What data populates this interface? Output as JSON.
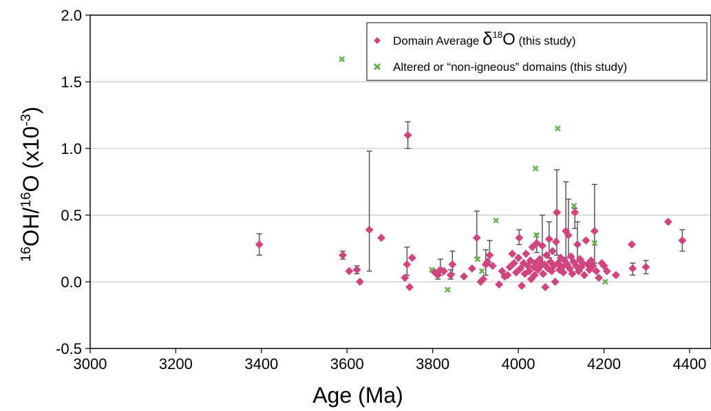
{
  "chart_data": {
    "type": "scatter",
    "title": "",
    "xlabel": "Age (Ma)",
    "ylabel": {
      "pre_sup": "16",
      "mid": "OH/",
      "mid_sup": "16",
      "post": "O (x10",
      "exp": "-3",
      "close": ")"
    },
    "xlim": [
      3000,
      4450
    ],
    "ylim": [
      -0.5,
      2.0
    ],
    "xticks": [
      "3000",
      "3200",
      "3400",
      "3600",
      "3800",
      "4000",
      "4200",
      "4400"
    ],
    "yticks": [
      "-0.5",
      "0.0",
      "0.5",
      "1.0",
      "1.5",
      "2.0"
    ],
    "grid": "horizontal",
    "legend_position": "top-right",
    "legend": {
      "series1_pre": "Domain Average ",
      "series1_delta": "δ",
      "series1_sup": "18",
      "series1_o": "O",
      "series1_post": " (this study)",
      "series2": "Altered or “non-igneous” domains (this study)"
    },
    "colors": {
      "series1": "#d2447f",
      "series2": "#6ab04c",
      "errorbar": "#555555",
      "grid": "#c8c8c8"
    },
    "series": [
      {
        "name": "Domain Average δ18O (this study)",
        "marker": "diamond",
        "points": [
          {
            "x": 3395,
            "y": 0.28,
            "lo": 0.2,
            "hi": 0.36
          },
          {
            "x": 3590,
            "y": 0.2,
            "lo": 0.17,
            "hi": 0.23
          },
          {
            "x": 3605,
            "y": 0.08
          },
          {
            "x": 3623,
            "y": 0.09,
            "lo": 0.06,
            "hi": 0.12
          },
          {
            "x": 3630,
            "y": 0.0
          },
          {
            "x": 3652,
            "y": 0.39,
            "lo": 0.08,
            "hi": 0.98
          },
          {
            "x": 3680,
            "y": 0.33
          },
          {
            "x": 3735,
            "y": 0.03
          },
          {
            "x": 3740,
            "y": 0.13,
            "lo": 0.05,
            "hi": 0.26
          },
          {
            "x": 3742,
            "y": 1.1,
            "lo": 1.0,
            "hi": 1.2
          },
          {
            "x": 3746,
            "y": -0.04
          },
          {
            "x": 3752,
            "y": 0.18
          },
          {
            "x": 3805,
            "y": 0.07
          },
          {
            "x": 3812,
            "y": 0.05,
            "lo": 0.02,
            "hi": 0.09
          },
          {
            "x": 3818,
            "y": 0.09,
            "lo": 0.05,
            "hi": 0.17
          },
          {
            "x": 3826,
            "y": 0.08
          },
          {
            "x": 3842,
            "y": 0.05,
            "lo": 0.02,
            "hi": 0.09
          },
          {
            "x": 3846,
            "y": 0.13,
            "lo": 0.06,
            "hi": 0.23
          },
          {
            "x": 3873,
            "y": 0.04
          },
          {
            "x": 3892,
            "y": 0.1
          },
          {
            "x": 3903,
            "y": 0.33,
            "lo": 0.18,
            "hi": 0.53
          },
          {
            "x": 3912,
            "y": 0.0
          },
          {
            "x": 3918,
            "y": 0.02
          },
          {
            "x": 3924,
            "y": 0.13,
            "lo": 0.05,
            "hi": 0.24
          },
          {
            "x": 3928,
            "y": 0.15
          },
          {
            "x": 3933,
            "y": 0.2,
            "lo": 0.12,
            "hi": 0.31
          },
          {
            "x": 3940,
            "y": 0.12
          },
          {
            "x": 3955,
            "y": -0.02
          },
          {
            "x": 3962,
            "y": 0.08
          },
          {
            "x": 3968,
            "y": 0.04
          },
          {
            "x": 3975,
            "y": 0.05
          },
          {
            "x": 3980,
            "y": 0.11
          },
          {
            "x": 3986,
            "y": 0.21
          },
          {
            "x": 3990,
            "y": 0.14
          },
          {
            "x": 3995,
            "y": 0.07
          },
          {
            "x": 4000,
            "y": 0.18
          },
          {
            "x": 4002,
            "y": 0.33,
            "lo": 0.28,
            "hi": 0.39
          },
          {
            "x": 4005,
            "y": 0.1
          },
          {
            "x": 4008,
            "y": -0.03
          },
          {
            "x": 4012,
            "y": 0.14
          },
          {
            "x": 4015,
            "y": 0.06
          },
          {
            "x": 4018,
            "y": 0.21
          },
          {
            "x": 4022,
            "y": 0.12
          },
          {
            "x": 4025,
            "y": 0.08
          },
          {
            "x": 4028,
            "y": 0.16
          },
          {
            "x": 4030,
            "y": 0.02
          },
          {
            "x": 4033,
            "y": 0.26
          },
          {
            "x": 4036,
            "y": 0.11
          },
          {
            "x": 4038,
            "y": 0.05
          },
          {
            "x": 4040,
            "y": 0.14
          },
          {
            "x": 4043,
            "y": 0.29,
            "lo": 0.22,
            "hi": 0.36
          },
          {
            "x": 4046,
            "y": 0.09
          },
          {
            "x": 4050,
            "y": 0.17
          },
          {
            "x": 4053,
            "y": 0.12
          },
          {
            "x": 4056,
            "y": 0.27,
            "lo": 0.15,
            "hi": 0.5
          },
          {
            "x": 4058,
            "y": 0.06
          },
          {
            "x": 4061,
            "y": 0.13
          },
          {
            "x": 4063,
            "y": -0.04
          },
          {
            "x": 4066,
            "y": 0.2
          },
          {
            "x": 4069,
            "y": 0.1
          },
          {
            "x": 4072,
            "y": 0.32,
            "lo": 0.18,
            "hi": 0.45
          },
          {
            "x": 4075,
            "y": 0.15
          },
          {
            "x": 4078,
            "y": 0.08
          },
          {
            "x": 4080,
            "y": 0.23
          },
          {
            "x": 4083,
            "y": 0.12
          },
          {
            "x": 4086,
            "y": 0.0
          },
          {
            "x": 4088,
            "y": 0.3
          },
          {
            "x": 4090,
            "y": 0.52,
            "lo": 0.2,
            "hi": 0.84
          },
          {
            "x": 4093,
            "y": 0.14
          },
          {
            "x": 4096,
            "y": 0.09
          },
          {
            "x": 4099,
            "y": 0.18
          },
          {
            "x": 4102,
            "y": 0.11
          },
          {
            "x": 4105,
            "y": 0.07
          },
          {
            "x": 4108,
            "y": 0.16
          },
          {
            "x": 4111,
            "y": 0.38,
            "lo": 0.15,
            "hi": 0.75
          },
          {
            "x": 4114,
            "y": 0.13
          },
          {
            "x": 4117,
            "y": 0.35,
            "lo": 0.18,
            "hi": 0.62
          },
          {
            "x": 4120,
            "y": 0.1
          },
          {
            "x": 4123,
            "y": 0.19
          },
          {
            "x": 4126,
            "y": 0.06
          },
          {
            "x": 4129,
            "y": 0.15
          },
          {
            "x": 4132,
            "y": 0.52,
            "lo": 0.4,
            "hi": 0.55
          },
          {
            "x": 4135,
            "y": 0.12
          },
          {
            "x": 4138,
            "y": 0.28,
            "lo": 0.15,
            "hi": 0.45
          },
          {
            "x": 4141,
            "y": 0.08
          },
          {
            "x": 4144,
            "y": 0.17
          },
          {
            "x": 4147,
            "y": 0.11
          },
          {
            "x": 4150,
            "y": 0.14
          },
          {
            "x": 4154,
            "y": 0.05
          },
          {
            "x": 4158,
            "y": 0.31
          },
          {
            "x": 4162,
            "y": 0.13
          },
          {
            "x": 4166,
            "y": 0.09
          },
          {
            "x": 4170,
            "y": 0.16
          },
          {
            "x": 4174,
            "y": 0.12
          },
          {
            "x": 4178,
            "y": 0.38,
            "lo": 0.14,
            "hi": 0.73
          },
          {
            "x": 4182,
            "y": 0.08
          },
          {
            "x": 4188,
            "y": 0.03
          },
          {
            "x": 4195,
            "y": 0.14
          },
          {
            "x": 4200,
            "y": 0.12
          },
          {
            "x": 4207,
            "y": 0.08
          },
          {
            "x": 4228,
            "y": 0.05
          },
          {
            "x": 4265,
            "y": 0.28
          },
          {
            "x": 4267,
            "y": 0.1,
            "lo": 0.05,
            "hi": 0.14
          },
          {
            "x": 4298,
            "y": 0.11,
            "lo": 0.06,
            "hi": 0.16
          },
          {
            "x": 4350,
            "y": 0.45
          },
          {
            "x": 4383,
            "y": 0.31,
            "lo": 0.23,
            "hi": 0.39
          }
        ]
      },
      {
        "name": "Altered or “non-igneous” domains (this study)",
        "marker": "x",
        "points": [
          {
            "x": 3588,
            "y": 1.67
          },
          {
            "x": 3798,
            "y": 0.09
          },
          {
            "x": 3835,
            "y": -0.06
          },
          {
            "x": 3905,
            "y": 0.17
          },
          {
            "x": 3915,
            "y": 0.08
          },
          {
            "x": 3948,
            "y": 0.46
          },
          {
            "x": 4040,
            "y": 0.85
          },
          {
            "x": 4042,
            "y": 0.35
          },
          {
            "x": 4092,
            "y": 1.15
          },
          {
            "x": 4130,
            "y": 0.57
          },
          {
            "x": 4178,
            "y": 0.29
          },
          {
            "x": 4203,
            "y": 0.0
          }
        ]
      }
    ]
  }
}
